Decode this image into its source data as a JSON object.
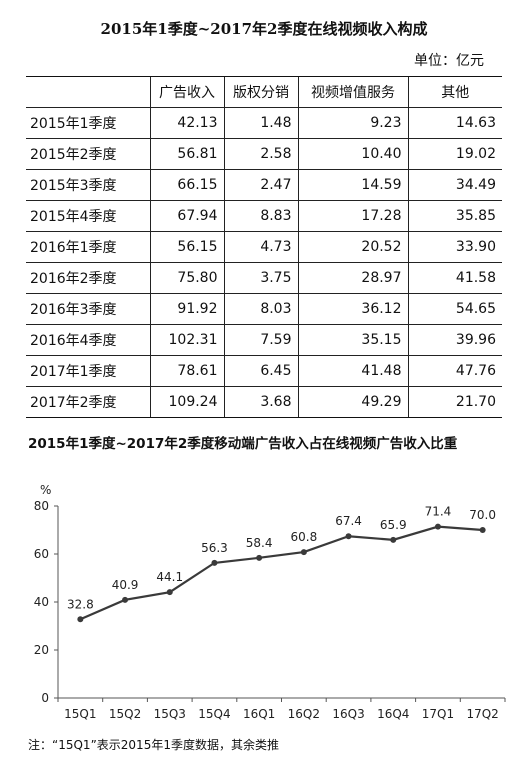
{
  "table_title": "2015年1季度~2017年2季度在线视频收入构成",
  "unit_label": "单位：亿元",
  "table": {
    "headers": [
      "",
      "广告收入",
      "版权分销",
      "视频增值服务",
      "其他"
    ],
    "rows": [
      {
        "label": "2015年1季度",
        "values": [
          "42.13",
          "1.48",
          "9.23",
          "14.63"
        ]
      },
      {
        "label": "2015年2季度",
        "values": [
          "56.81",
          "2.58",
          "10.40",
          "19.02"
        ]
      },
      {
        "label": "2015年3季度",
        "values": [
          "66.15",
          "2.47",
          "14.59",
          "34.49"
        ]
      },
      {
        "label": "2015年4季度",
        "values": [
          "67.94",
          "8.83",
          "17.28",
          "35.85"
        ]
      },
      {
        "label": "2016年1季度",
        "values": [
          "56.15",
          "4.73",
          "20.52",
          "33.90"
        ]
      },
      {
        "label": "2016年2季度",
        "values": [
          "75.80",
          "3.75",
          "28.97",
          "41.58"
        ]
      },
      {
        "label": "2016年3季度",
        "values": [
          "91.92",
          "8.03",
          "36.12",
          "54.65"
        ]
      },
      {
        "label": "2016年4季度",
        "values": [
          "102.31",
          "7.59",
          "35.15",
          "39.96"
        ]
      },
      {
        "label": "2017年1季度",
        "values": [
          "78.61",
          "6.45",
          "41.48",
          "47.76"
        ]
      },
      {
        "label": "2017年2季度",
        "values": [
          "109.24",
          "3.68",
          "49.29",
          "21.70"
        ]
      }
    ]
  },
  "chart_data": {
    "type": "line",
    "title": "2015年1季度~2017年2季度移动端广告收入占在线视频广告收入比重",
    "ylabel": "%",
    "categories": [
      "15Q1",
      "15Q2",
      "15Q3",
      "15Q4",
      "16Q1",
      "16Q2",
      "16Q3",
      "16Q4",
      "17Q1",
      "17Q2"
    ],
    "values": [
      32.8,
      40.9,
      44.1,
      56.3,
      58.4,
      60.8,
      67.4,
      65.9,
      71.4,
      70.0
    ],
    "value_labels": [
      "32.8",
      "40.9",
      "44.1",
      "56.3",
      "58.4",
      "60.8",
      "67.4",
      "65.9",
      "71.4",
      "70.0"
    ],
    "ylim": [
      0,
      80
    ],
    "yticks": [
      0,
      20,
      40,
      60,
      80
    ],
    "grid": false,
    "line_color": "#3a3a3a"
  },
  "note": "注：“15Q1”表示2015年1季度数据，其余类推"
}
